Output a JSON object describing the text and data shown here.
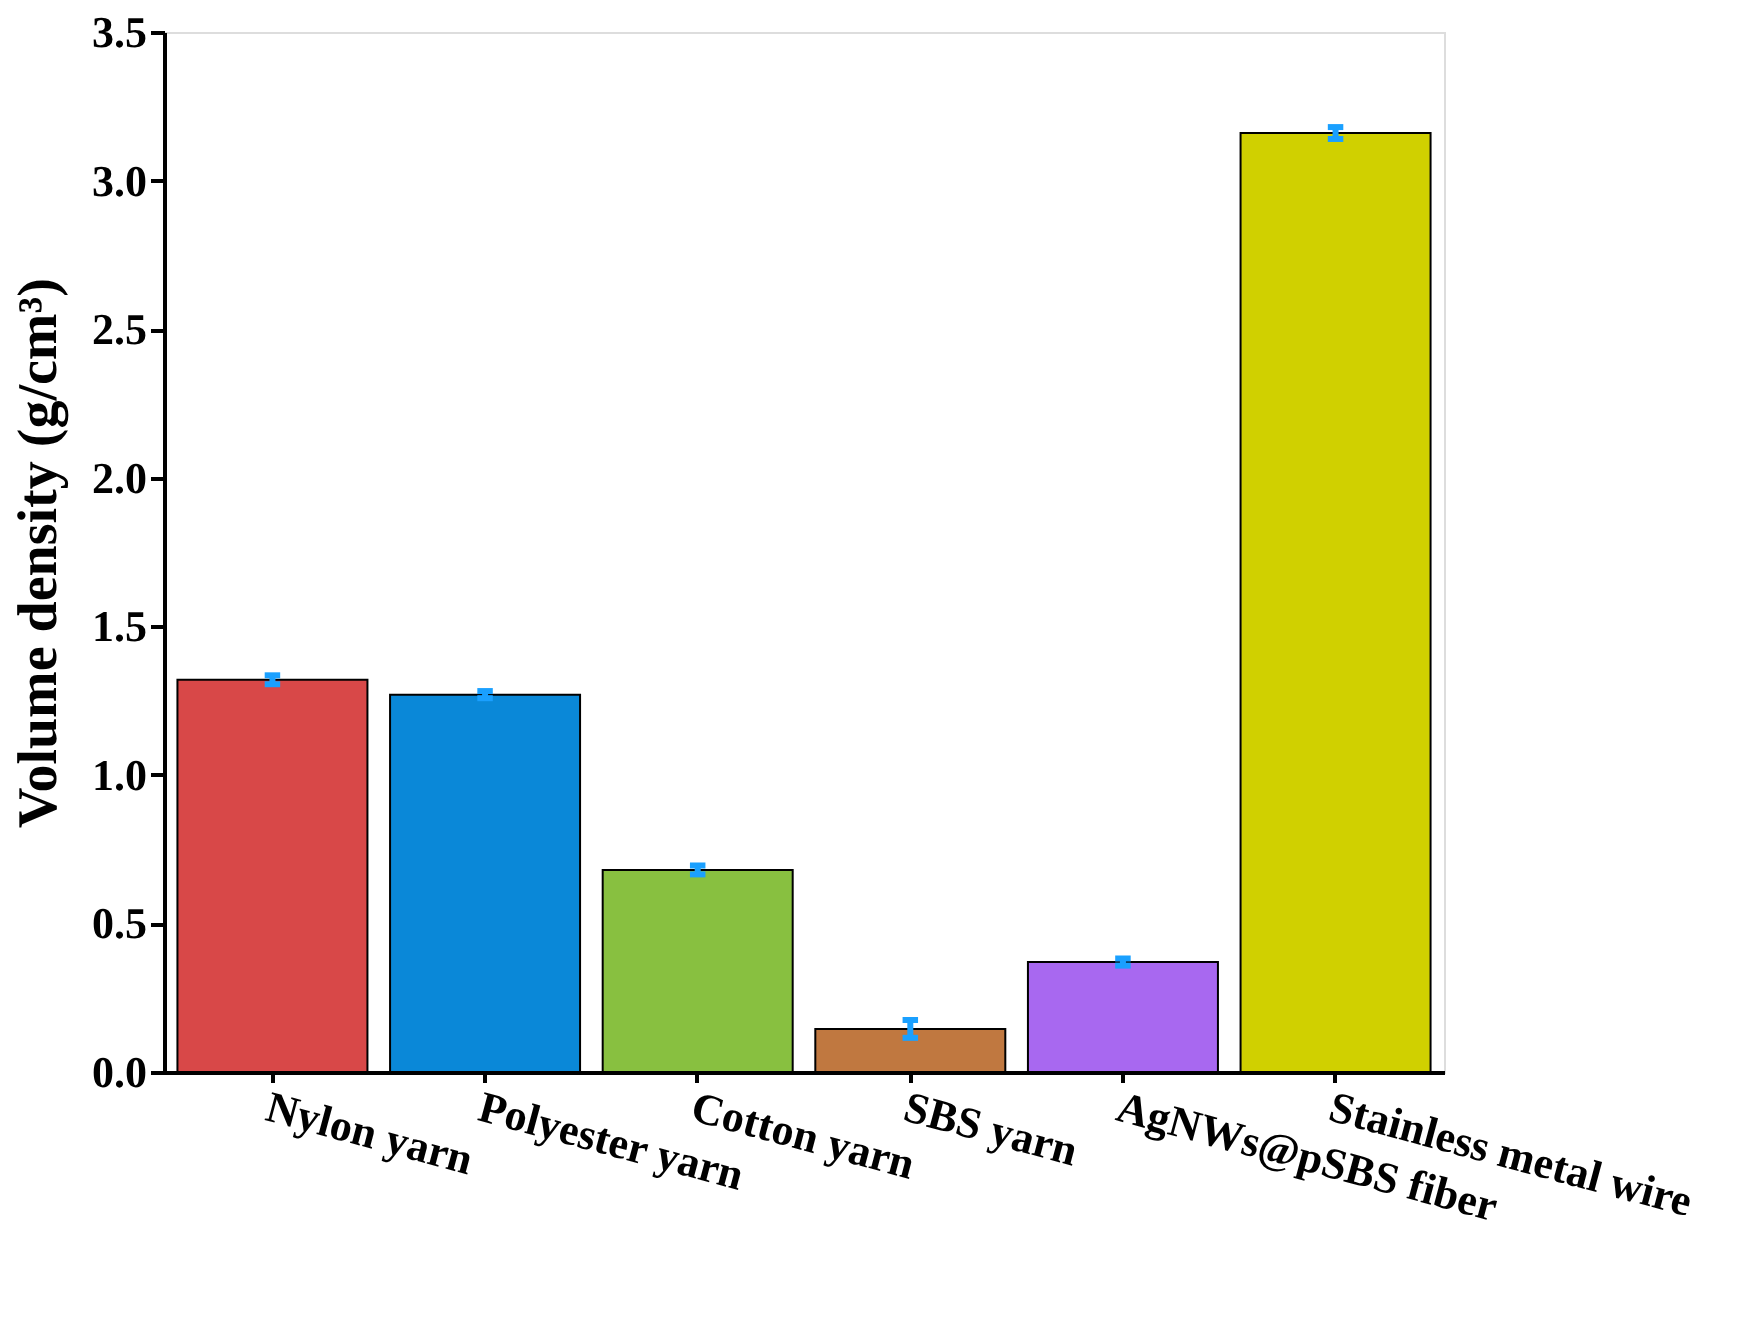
{
  "chart_data": {
    "type": "bar",
    "ylabel": "Volume density (g/cm³)",
    "categories": [
      "Nylon yarn",
      "Polyester yarn",
      "Cotton yarn",
      "SBS yarn",
      "AgNWs@pSBS fiber",
      "Stainless metal wire"
    ],
    "values": [
      1.32,
      1.27,
      0.68,
      0.145,
      0.37,
      3.16
    ],
    "errors": [
      0.015,
      0.012,
      0.015,
      0.03,
      0.012,
      0.02
    ],
    "colors": [
      "#d84848",
      "#0a88d8",
      "#88c040",
      "#c07840",
      "#a868f0",
      "#d0d000"
    ],
    "ylim": [
      0,
      3.5
    ],
    "yticks": [
      {
        "value": 0,
        "label": "0.0"
      },
      0.5,
      {
        "value": 1,
        "label": "1.0"
      },
      1.5,
      {
        "value": 2,
        "label": "2.0"
      },
      2.5,
      {
        "value": 3,
        "label": "3.0"
      },
      3.5
    ],
    "grid": false
  }
}
